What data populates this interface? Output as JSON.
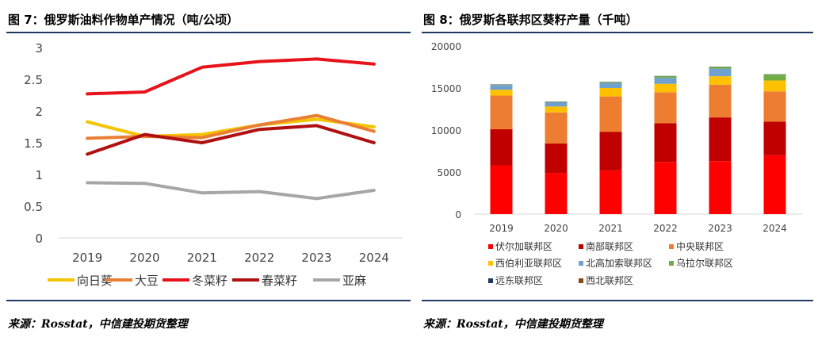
{
  "left": {
    "title": "图 7：俄罗斯油料作物单产情况（吨/公顷）",
    "source": "来源：Rosstat，中信建投期货整理"
  },
  "right": {
    "title": "图 8：俄罗斯各联邦区葵籽产量（千吨）",
    "source": "来源：Rosstat，中信建投期货整理"
  },
  "chart_data": [
    {
      "type": "line",
      "title": "图 7：俄罗斯油料作物单产情况（吨/公顷）",
      "x": [
        "2019",
        "2020",
        "2021",
        "2022",
        "2023",
        "2024"
      ],
      "ylim": [
        0,
        3
      ],
      "yticks": [
        "0",
        "0.5",
        "1",
        "1.5",
        "2",
        "2.5",
        "3"
      ],
      "ytick_values": [
        0,
        0.5,
        1,
        1.5,
        2,
        2.5,
        3
      ],
      "grid": false,
      "legend_position": "bottom",
      "series": [
        {
          "name": "向日葵",
          "color": "#f5c400",
          "values": [
            1.83,
            1.6,
            1.63,
            1.78,
            1.87,
            1.75
          ]
        },
        {
          "name": "大豆",
          "color": "#e97f35",
          "values": [
            1.57,
            1.6,
            1.58,
            1.78,
            1.93,
            1.68
          ]
        },
        {
          "name": "冬菜籽",
          "color": "#e8121a",
          "values": [
            2.27,
            2.3,
            2.69,
            2.78,
            2.82,
            2.74
          ]
        },
        {
          "name": "春菜籽",
          "color": "#b01010",
          "values": [
            1.32,
            1.63,
            1.5,
            1.71,
            1.77,
            1.5
          ]
        },
        {
          "name": "亚麻",
          "color": "#a6a6a6",
          "values": [
            0.87,
            0.86,
            0.71,
            0.73,
            0.62,
            0.75
          ]
        }
      ]
    },
    {
      "type": "bar",
      "stacked": true,
      "title": "图 8：俄罗斯各联邦区葵籽产量（千吨）",
      "categories": [
        "2019",
        "2020",
        "2021",
        "2022",
        "2023",
        "2024"
      ],
      "ylim": [
        0,
        20000
      ],
      "yticks": [
        "0",
        "5000",
        "10000",
        "15000",
        "20000"
      ],
      "ytick_values": [
        0,
        5000,
        10000,
        15000,
        20000
      ],
      "grid": false,
      "legend_position": "bottom",
      "series": [
        {
          "name": "伏尔加联邦区",
          "color": "#ff0000",
          "values": [
            5800,
            4900,
            5200,
            6200,
            6300,
            7000
          ]
        },
        {
          "name": "南部联邦区",
          "color": "#c00000",
          "values": [
            4300,
            3500,
            4600,
            4600,
            5200,
            4000
          ]
        },
        {
          "name": "中央联邦区",
          "color": "#ed7d31",
          "values": [
            4000,
            3700,
            4200,
            3700,
            3900,
            3600
          ]
        },
        {
          "name": "西伯利亚联邦区",
          "color": "#ffc000",
          "values": [
            700,
            700,
            1000,
            1000,
            1000,
            1300
          ]
        },
        {
          "name": "北高加索联邦区",
          "color": "#6fa0cf",
          "values": [
            550,
            500,
            600,
            700,
            900,
            0
          ]
        },
        {
          "name": "乌拉尔联邦区",
          "color": "#70ad47",
          "values": [
            50,
            50,
            100,
            200,
            200,
            700
          ]
        },
        {
          "name": "远东联邦区",
          "color": "#1f3864",
          "values": [
            30,
            30,
            30,
            30,
            30,
            30
          ]
        },
        {
          "name": "西北联邦区",
          "color": "#8b4513",
          "values": [
            10,
            10,
            10,
            10,
            10,
            10
          ]
        }
      ]
    }
  ]
}
